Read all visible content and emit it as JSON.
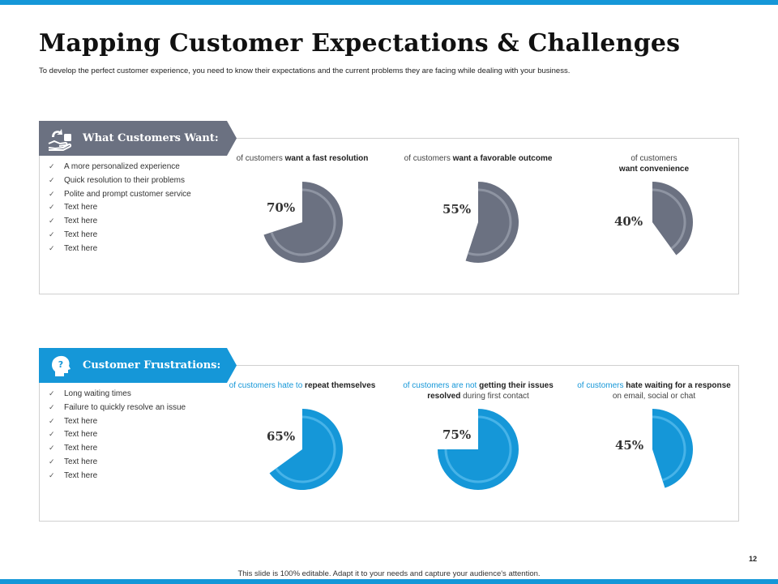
{
  "title": "Mapping Customer Expectations & Challenges",
  "subtitle": "To develop the perfect customer experience, you need to know their expectations and the current problems they are facing while dealing with your business.",
  "colors": {
    "accent_blue": "#1597d8",
    "accent_gray": "#6b7181",
    "ring_gray": "#8e94a2",
    "ring_blue": "#47b3e8"
  },
  "want": {
    "heading": "What Customers Want:",
    "icon": "hand-with-box-icon",
    "items": [
      "A more personalized experience",
      "Quick resolution to their problems",
      "Polite  and prompt customer service",
      "Text here",
      "Text here",
      "Text here",
      "Text here"
    ],
    "stats": [
      {
        "lead": "of customers ",
        "strong": "want a fast resolution",
        "rest": "",
        "percent": 70,
        "label": "70%"
      },
      {
        "lead": "of customers ",
        "strong": "want a favorable outcome",
        "rest": "",
        "percent": 55,
        "label": "55%"
      },
      {
        "lead": "of customers ",
        "strong": "want convenience",
        "rest": "",
        "percent": 40,
        "label": "40%"
      }
    ]
  },
  "frustrations": {
    "heading": "Customer Frustrations:",
    "icon": "head-question-icon",
    "items": [
      "Long waiting times",
      "Failure to quickly resolve an issue",
      "Text here",
      "Text here",
      "Text here",
      "Text here",
      "Text here"
    ],
    "stats": [
      {
        "lead": "of customers hate to ",
        "strong": "repeat themselves",
        "rest": "",
        "percent": 65,
        "label": "65%"
      },
      {
        "lead": "of customers are not ",
        "strong": "getting their issues resolved",
        "rest": " during first contact",
        "percent": 75,
        "label": "75%"
      },
      {
        "lead": "of customers ",
        "strong": "hate waiting for a response",
        "rest": " on email, social or chat",
        "percent": 45,
        "label": "45%"
      }
    ]
  },
  "footer": "This slide is 100% editable.  Adapt it to your needs and capture your audience's attention.",
  "page_number": "12"
}
